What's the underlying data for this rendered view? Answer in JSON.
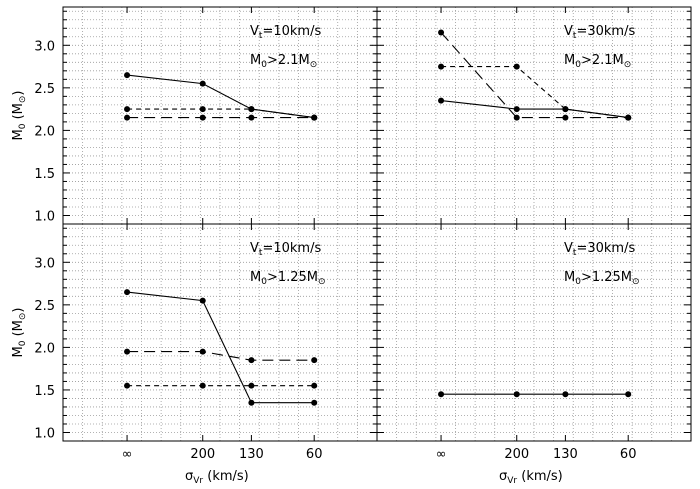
{
  "chart_data": [
    {
      "type": "line",
      "panel": "top-left",
      "annotation_v": [
        "V",
        "t",
        "=10km/s"
      ],
      "annotation_m": [
        "M",
        "0",
        ">2.1M",
        "⊙"
      ],
      "categories": [
        "∞",
        "200",
        "130",
        "60"
      ],
      "ylim": [
        0.9,
        3.45
      ],
      "series": [
        {
          "name": "solid",
          "style": "solid",
          "values": [
            2.65,
            2.55,
            2.25,
            2.15
          ]
        },
        {
          "name": "short-dashed",
          "style": "short-dash",
          "values": [
            2.25,
            2.25,
            2.25,
            2.15
          ]
        },
        {
          "name": "long-dashed",
          "style": "long-dash",
          "values": [
            2.15,
            2.15,
            2.15,
            2.15
          ]
        }
      ]
    },
    {
      "type": "line",
      "panel": "top-right",
      "annotation_v": [
        "V",
        "t",
        "=30km/s"
      ],
      "annotation_m": [
        "M",
        "0",
        ">2.1M",
        "⊙"
      ],
      "categories": [
        "∞",
        "200",
        "130",
        "60"
      ],
      "ylim": [
        0.9,
        3.45
      ],
      "series": [
        {
          "name": "solid",
          "style": "solid",
          "values": [
            2.35,
            2.25,
            2.25,
            2.15
          ]
        },
        {
          "name": "short-dashed",
          "style": "short-dash",
          "values": [
            2.75,
            2.75,
            2.25,
            2.15
          ]
        },
        {
          "name": "long-dashed",
          "style": "long-dash",
          "values": [
            3.15,
            2.15,
            2.15,
            2.15
          ]
        }
      ]
    },
    {
      "type": "line",
      "panel": "bottom-left",
      "annotation_v": [
        "V",
        "t",
        "=10km/s"
      ],
      "annotation_m": [
        "M",
        "0",
        ">1.25M",
        "⊙"
      ],
      "categories": [
        "∞",
        "200",
        "130",
        "60"
      ],
      "ylim": [
        0.9,
        3.45
      ],
      "series": [
        {
          "name": "solid",
          "style": "solid",
          "values": [
            2.65,
            2.55,
            1.35,
            1.35
          ]
        },
        {
          "name": "short-dashed",
          "style": "short-dash",
          "values": [
            1.55,
            1.55,
            1.55,
            1.55
          ]
        },
        {
          "name": "long-dashed",
          "style": "long-dash",
          "values": [
            1.95,
            1.95,
            1.85,
            1.85
          ]
        }
      ]
    },
    {
      "type": "line",
      "panel": "bottom-right",
      "annotation_v": [
        "V",
        "t",
        "=30km/s"
      ],
      "annotation_m": [
        "M",
        "0",
        ">1.25M",
        "⊙"
      ],
      "categories": [
        "∞",
        "200",
        "130",
        "60"
      ],
      "ylim": [
        0.9,
        3.45
      ],
      "series": [
        {
          "name": "solid",
          "style": "solid",
          "values": [
            1.45,
            1.45,
            1.45,
            1.45
          ]
        }
      ]
    }
  ],
  "axes": {
    "ylabel": [
      "M",
      "0",
      " (M",
      "⊙",
      ")"
    ],
    "xlabel": [
      "σ",
      "Vr",
      " (km/s)"
    ],
    "yticks": [
      "1.0",
      "1.5",
      "2.0",
      "2.5",
      "3.0"
    ]
  }
}
